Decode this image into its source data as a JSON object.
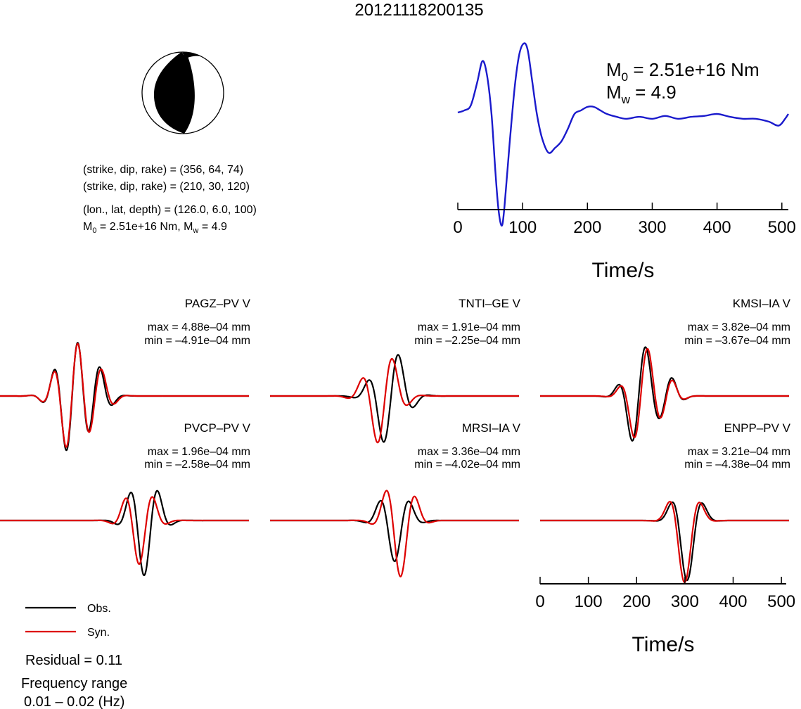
{
  "title": "20121118200135",
  "colors": {
    "obs": "#000000",
    "syn": "#dd0000",
    "stf": "#1a1acc"
  },
  "focal": {
    "line1": "(strike, dip, rake) = (356, 64, 74)",
    "line2": "(strike, dip, rake) = (210, 30, 120)",
    "line3": "(lon., lat, depth) = (126.0, 6.0, 100)",
    "m0_label": "M",
    "m0_sub": "0",
    "m0_val": " = 2.51e+16 Nm, M",
    "mw_sub": "w",
    "mw_val": " = 4.9"
  },
  "stf_labels": {
    "m0_sym": "M",
    "m0_sub": "0",
    "m0_text": " = 2.51e+16 Nm",
    "mw_sym": "M",
    "mw_sub": "w",
    "mw_text": " = 4.9"
  },
  "legend": {
    "obs": "Obs.",
    "syn": "Syn."
  },
  "residual": "Residual = 0.11",
  "freq_label": "Frequency range",
  "freq_value": "0.01 – 0.02 (Hz)",
  "chart_data": [
    {
      "type": "line",
      "name": "source-time-function",
      "xlabel": "Time/s",
      "xlim": [
        0,
        510
      ],
      "x_ticks": [
        0,
        100,
        200,
        300,
        400,
        500
      ],
      "series": [
        {
          "points": [
            [
              0,
              0.02
            ],
            [
              10,
              0.05
            ],
            [
              20,
              0.12
            ],
            [
              30,
              0.45
            ],
            [
              38,
              0.75
            ],
            [
              45,
              0.55
            ],
            [
              52,
              0.0
            ],
            [
              58,
              -0.6
            ],
            [
              63,
              -1.0
            ],
            [
              68,
              -1.15
            ],
            [
              72,
              -0.95
            ],
            [
              80,
              -0.3
            ],
            [
              88,
              0.4
            ],
            [
              95,
              0.85
            ],
            [
              102,
              1.0
            ],
            [
              108,
              0.9
            ],
            [
              115,
              0.45
            ],
            [
              122,
              0.0
            ],
            [
              130,
              -0.25
            ],
            [
              140,
              -0.4
            ],
            [
              150,
              -0.35
            ],
            [
              160,
              -0.28
            ],
            [
              170,
              -0.15
            ],
            [
              180,
              0.0
            ],
            [
              190,
              0.05
            ],
            [
              200,
              0.1
            ],
            [
              210,
              0.1
            ],
            [
              220,
              0.05
            ],
            [
              230,
              0.0
            ],
            [
              245,
              -0.03
            ],
            [
              260,
              -0.05
            ],
            [
              280,
              -0.03
            ],
            [
              300,
              -0.05
            ],
            [
              320,
              -0.02
            ],
            [
              340,
              -0.05
            ],
            [
              360,
              -0.03
            ],
            [
              380,
              -0.02
            ],
            [
              400,
              0.0
            ],
            [
              420,
              -0.03
            ],
            [
              440,
              -0.05
            ],
            [
              460,
              -0.05
            ],
            [
              480,
              -0.08
            ],
            [
              495,
              -0.12
            ],
            [
              505,
              -0.05
            ],
            [
              510,
              0.0
            ]
          ]
        }
      ]
    },
    {
      "type": "line",
      "name": "waveform-comparison",
      "xlabel": "Time/s",
      "xlim": [
        0,
        510
      ],
      "x_ticks": [
        0,
        100,
        200,
        300,
        400,
        500
      ],
      "stations": [
        {
          "label": "PAGZ–PV V",
          "max": "max = 4.88e–04 mm",
          "min": "min = –4.91e–04 mm"
        },
        {
          "label": "TNTI–GE V",
          "max": "max = 1.91e–04 mm",
          "min": "min = –2.25e–04 mm"
        },
        {
          "label": "KMSI–IA V",
          "max": "max = 3.82e–04 mm",
          "min": "min = –3.67e–04 mm"
        },
        {
          "label": "PVCP–PV V",
          "max": "max = 1.96e–04 mm",
          "min": "min = –2.58e–04 mm"
        },
        {
          "label": "MRSI–IA V",
          "max": "max = 3.36e–04 mm",
          "min": "min = –4.02e–04 mm"
        },
        {
          "label": "ENPP–PV V",
          "max": "max = 3.21e–04 mm",
          "min": "min = –4.38e–04 mm"
        }
      ]
    }
  ]
}
